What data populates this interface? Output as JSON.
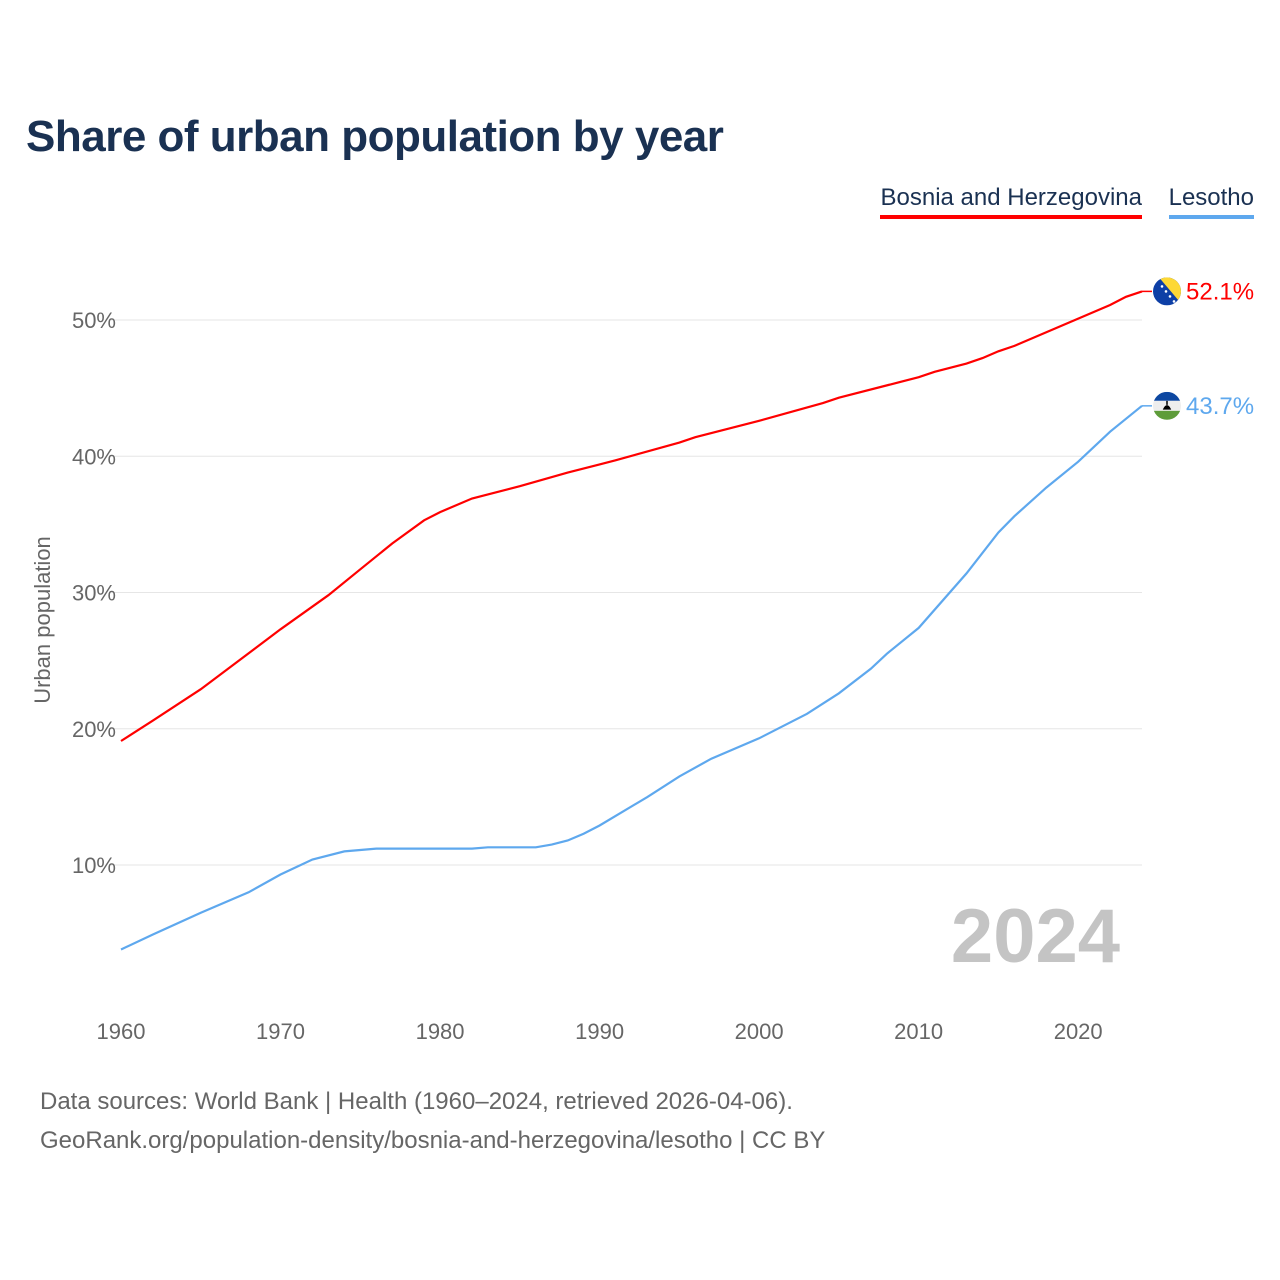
{
  "title": "Share of urban population by year",
  "footer": {
    "line1": "Data sources: World Bank | Health (1960–2024, retrieved 2026-04-06).",
    "line2": "GeoRank.org/population-density/bosnia-and-herzegovina/lesotho | CC BY"
  },
  "chart_data": {
    "type": "line",
    "title": "Share of urban population by year",
    "xlabel": "",
    "ylabel": "Urban population",
    "xlim": [
      1960,
      2024
    ],
    "ylim": [
      0,
      55
    ],
    "x_ticks": [
      "1960",
      "1970",
      "1980",
      "1990",
      "2000",
      "2010",
      "2020"
    ],
    "y_ticks": [
      "10%",
      "20%",
      "30%",
      "40%",
      "50%"
    ],
    "y_tick_values": [
      10,
      20,
      30,
      40,
      50
    ],
    "grid": true,
    "legend_position": "top-right",
    "year_watermark": "2024",
    "series": [
      {
        "name": "Bosnia and Herzegovina",
        "color": "#ff0000",
        "end_label": "52.1%",
        "flag": "bosnia-flag",
        "x": [
          1960,
          1962,
          1965,
          1970,
          1973,
          1975,
          1977,
          1979,
          1980,
          1982,
          1983,
          1985,
          1988,
          1990,
          1991,
          1995,
          1996,
          2000,
          2004,
          2005,
          2010,
          2011,
          2013,
          2014,
          2015,
          2016,
          2018,
          2020,
          2022,
          2023,
          2024
        ],
        "values": [
          19.1,
          20.6,
          22.9,
          27.3,
          29.8,
          31.7,
          33.6,
          35.3,
          35.9,
          36.9,
          37.2,
          37.8,
          38.8,
          39.4,
          39.7,
          41.0,
          41.4,
          42.6,
          43.9,
          44.3,
          45.8,
          46.2,
          46.8,
          47.2,
          47.7,
          48.1,
          49.1,
          50.1,
          51.1,
          51.7,
          52.1
        ]
      },
      {
        "name": "Lesotho",
        "color": "#5ea8ee",
        "end_label": "43.7%",
        "flag": "lesotho-flag",
        "x": [
          1960,
          1962,
          1965,
          1968,
          1970,
          1972,
          1974,
          1976,
          1980,
          1982,
          1983,
          1986,
          1987,
          1988,
          1989,
          1990,
          1993,
          1995,
          1997,
          2000,
          2003,
          2005,
          2007,
          2008,
          2010,
          2013,
          2015,
          2016,
          2018,
          2020,
          2022,
          2024
        ],
        "values": [
          3.8,
          4.9,
          6.5,
          8.0,
          9.3,
          10.4,
          11.0,
          11.2,
          11.2,
          11.2,
          11.3,
          11.3,
          11.5,
          11.8,
          12.3,
          12.9,
          15.0,
          16.5,
          17.8,
          19.3,
          21.1,
          22.6,
          24.4,
          25.5,
          27.4,
          31.4,
          34.4,
          35.6,
          37.7,
          39.6,
          41.8,
          43.7
        ]
      }
    ]
  }
}
